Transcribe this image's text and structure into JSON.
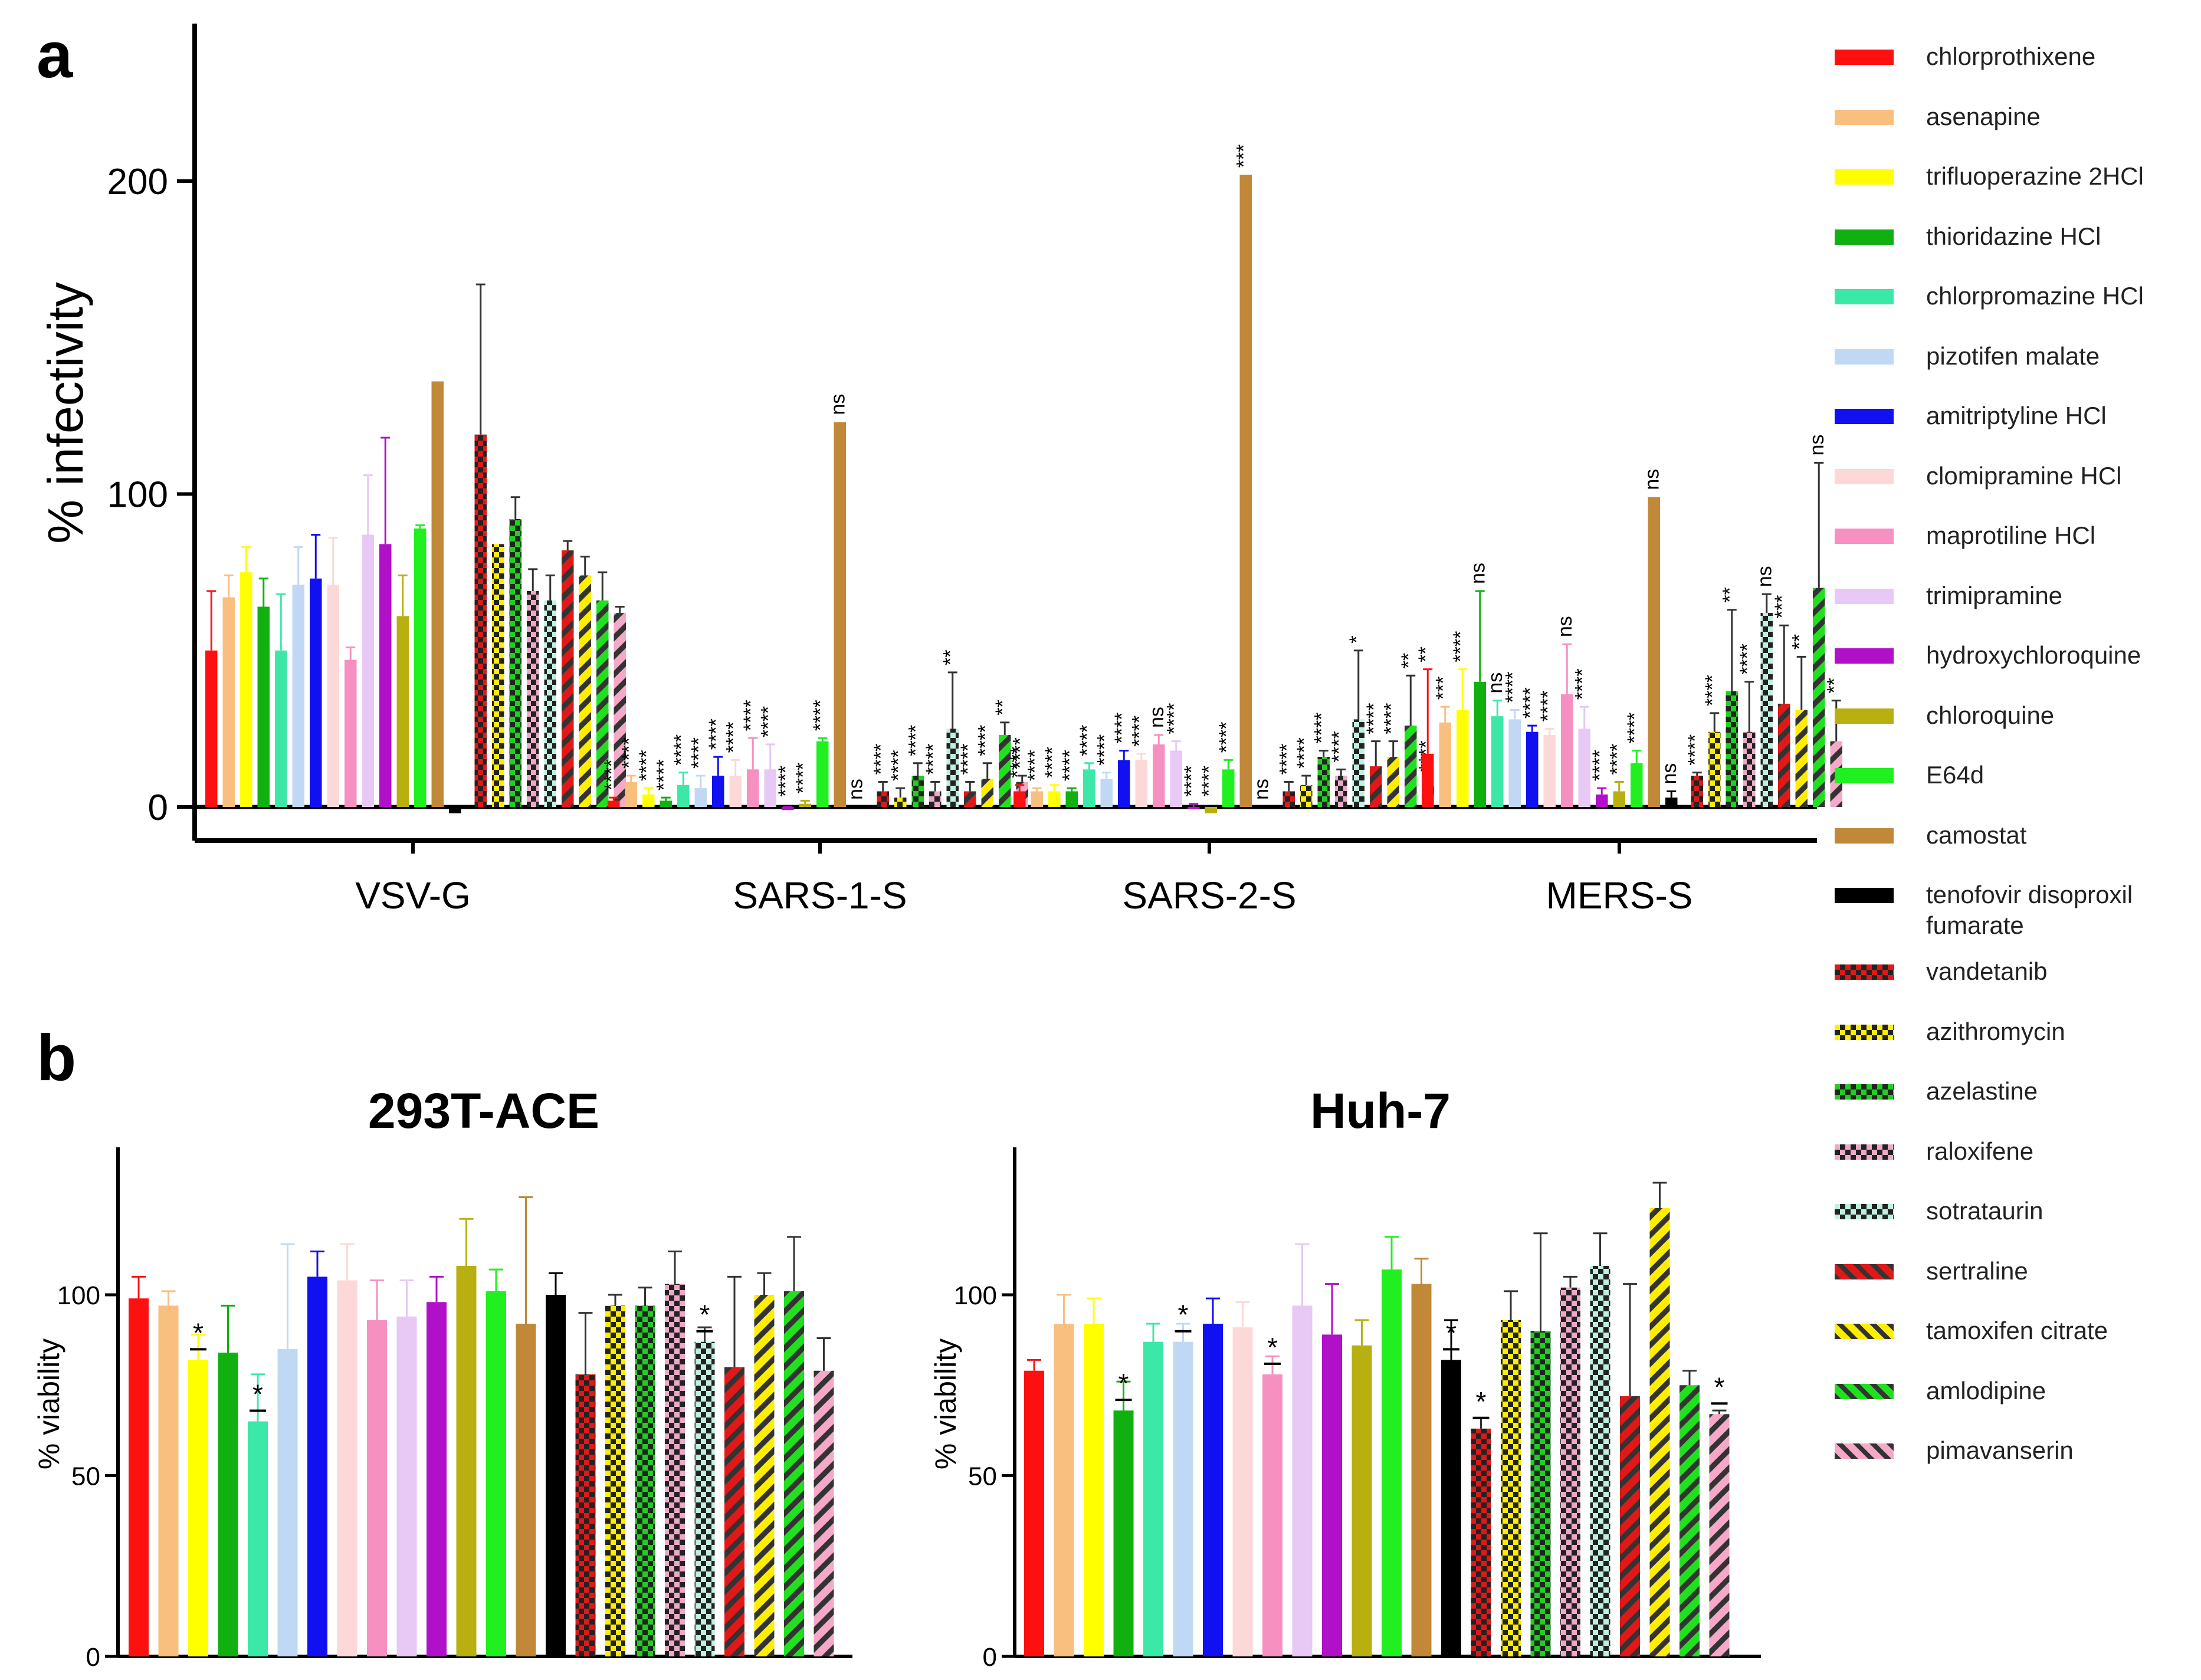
{
  "panel_labels": {
    "a": "a",
    "b": "b"
  },
  "legend": [
    {
      "label": "chlorprothixene",
      "color": "#ff1010",
      "pattern": "solid"
    },
    {
      "label": "asenapine",
      "color": "#f9bf7f",
      "pattern": "solid"
    },
    {
      "label": "trifluoperazine 2HCl",
      "color": "#ffff00",
      "pattern": "solid"
    },
    {
      "label": "thioridazine HCl",
      "color": "#10b010",
      "pattern": "solid"
    },
    {
      "label": "chlorpromazine HCl",
      "color": "#3ce8a8",
      "pattern": "solid"
    },
    {
      "label": "pizotifen malate",
      "color": "#c0d8f4",
      "pattern": "solid"
    },
    {
      "label": "amitriptyline HCl",
      "color": "#1010f0",
      "pattern": "solid"
    },
    {
      "label": "clomipramine HCl",
      "color": "#fcd8d8",
      "pattern": "solid"
    },
    {
      "label": "maprotiline HCl",
      "color": "#f590c0",
      "pattern": "solid"
    },
    {
      "label": "trimipramine",
      "color": "#e8c8f4",
      "pattern": "solid"
    },
    {
      "label": "hydroxychloroquine",
      "color": "#b010c8",
      "pattern": "solid"
    },
    {
      "label": "chloroquine",
      "color": "#b8b010",
      "pattern": "solid"
    },
    {
      "label": "E64d",
      "color": "#20f020",
      "pattern": "solid"
    },
    {
      "label": "camostat",
      "color": "#c08838",
      "pattern": "solid"
    },
    {
      "label": "tenofovir disoproxil fumarate",
      "color": "#000000",
      "pattern": "solid"
    },
    {
      "label": "vandetanib",
      "color": "#e01818",
      "pattern": "check"
    },
    {
      "label": "azithromycin",
      "color": "#ffee00",
      "pattern": "check"
    },
    {
      "label": "azelastine",
      "color": "#20d020",
      "pattern": "check"
    },
    {
      "label": "raloxifene",
      "color": "#f0a8c8",
      "pattern": "check"
    },
    {
      "label": "sotrataurin",
      "color": "#bff0e0",
      "pattern": "check"
    },
    {
      "label": "sertraline",
      "color": "#e01818",
      "pattern": "stripe"
    },
    {
      "label": "tamoxifen citrate",
      "color": "#ffee00",
      "pattern": "stripe"
    },
    {
      "label": "amlodipine",
      "color": "#20e020",
      "pattern": "stripe"
    },
    {
      "label": "pimavanserin",
      "color": "#f5a8c8",
      "pattern": "stripe"
    }
  ],
  "chart_data": [
    {
      "id": "a",
      "type": "bar",
      "title": "",
      "xlabel": "",
      "ylabel": "% infectivity",
      "ylim": [
        0,
        240
      ],
      "yticks": [
        0,
        100,
        200
      ],
      "categories": [
        "VSV-G",
        "SARS-1-S",
        "SARS-2-S",
        "MERS-S"
      ],
      "series_values": {
        "VSV-G": [
          50,
          67,
          75,
          64,
          50,
          71,
          73,
          71,
          47,
          87,
          84,
          61,
          89,
          136,
          -2,
          119,
          84,
          92,
          69,
          66,
          82,
          74,
          66,
          62
        ],
        "SARS-1-S": [
          2,
          8,
          4,
          2,
          7,
          6,
          10,
          10,
          12,
          12,
          -1,
          1,
          21,
          123,
          0,
          5,
          3,
          10,
          5,
          25,
          5,
          9,
          23,
          8
        ],
        "SARS-2-S": [
          5,
          5,
          5,
          5,
          12,
          9,
          15,
          15,
          20,
          18,
          0,
          -2,
          12,
          202,
          0,
          5,
          7,
          16,
          10,
          28,
          13,
          16,
          26,
          7
        ],
        "MERS-S": [
          17,
          27,
          31,
          40,
          29,
          28,
          24,
          23,
          36,
          25,
          4,
          5,
          14,
          99,
          3,
          10,
          24,
          37,
          24,
          62,
          33,
          31,
          70,
          21
        ]
      },
      "error_values": {
        "VSV-G": [
          19,
          7,
          8,
          9,
          18,
          12,
          14,
          15,
          4,
          19,
          34,
          13,
          1,
          0,
          0,
          48,
          0,
          7,
          7,
          8,
          3,
          6,
          9,
          2
        ],
        "SARS-1-S": [
          1,
          2,
          2,
          1,
          4,
          4,
          6,
          5,
          10,
          8,
          1,
          1,
          1,
          0,
          0,
          3,
          3,
          4,
          3,
          18,
          3,
          5,
          4,
          2
        ],
        "SARS-2-S": [
          2,
          1,
          2,
          1,
          2,
          2,
          3,
          2,
          3,
          3,
          1,
          1,
          3,
          0,
          0,
          3,
          3,
          2,
          2,
          22,
          8,
          5,
          16,
          2
        ],
        "MERS-S": [
          27,
          5,
          13,
          29,
          5,
          3,
          2,
          2,
          16,
          7,
          2,
          3,
          4,
          0,
          2,
          1,
          6,
          26,
          16,
          6,
          25,
          17,
          40,
          13
        ]
      },
      "significance": {
        "VSV-G": [
          "",
          "",
          "",
          "",
          "",
          "",
          "",
          "",
          "",
          "",
          "",
          "",
          "",
          "",
          "",
          "",
          "",
          "",
          "",
          "",
          "",
          "",
          "",
          ""
        ],
        "SARS-1-S": [
          "****",
          "****",
          "****",
          "****",
          "****",
          "****",
          "****",
          "****",
          "****",
          "****",
          "****",
          "****",
          "****",
          "ns",
          "ns",
          "****",
          "****",
          "****",
          "****",
          "**",
          "****",
          "****",
          "**",
          "****"
        ],
        "SARS-2-S": [
          "****",
          "****",
          "****",
          "****",
          "****",
          "****",
          "****",
          "****",
          "ns",
          "****",
          "****",
          "****",
          "****",
          "***",
          "ns",
          "****",
          "****",
          "****",
          "****",
          "*",
          "****",
          "****",
          "**",
          "****"
        ],
        "MERS-S": [
          "**",
          "***",
          "****",
          "ns",
          "ns",
          "****",
          "****",
          "****",
          "ns",
          "****",
          "****",
          "****",
          "****",
          "ns",
          "ns",
          "****",
          "****",
          "**",
          "****",
          "ns",
          "***",
          "**",
          "ns",
          "**"
        ]
      }
    },
    {
      "id": "b1",
      "type": "bar",
      "title": "293T-ACE",
      "xlabel": "",
      "ylabel": "% viability",
      "ylim": [
        0,
        140
      ],
      "yticks": [
        0,
        50,
        100
      ],
      "categories": [
        "chlorprothixene",
        "asenapine",
        "trifluoperazine 2HCl",
        "thioridazine HCl",
        "chlorpromazine HCl",
        "pizotifen malate",
        "amitriptyline HCl",
        "clomipramine HCl",
        "maprotiline HCl",
        "trimipramine",
        "hydroxychloroquine",
        "chloroquine",
        "E64d",
        "camostat",
        "tenofovir disoproxil fumarate",
        "vandetanib",
        "azithromycin",
        "azelastine",
        "raloxifene",
        "sotrataurin",
        "sertraline",
        "tamoxifen citrate",
        "amlodipine",
        "pimavanserin"
      ],
      "values": [
        99,
        97,
        82,
        84,
        65,
        85,
        105,
        104,
        93,
        94,
        98,
        108,
        101,
        92,
        100,
        78,
        97,
        97,
        103,
        87,
        80,
        100,
        101,
        79
      ],
      "errors": [
        6,
        4,
        7,
        13,
        13,
        29,
        7,
        10,
        11,
        10,
        7,
        13,
        6,
        35,
        6,
        17,
        3,
        5,
        9,
        4,
        25,
        6,
        15,
        9
      ],
      "significance": [
        "",
        "",
        "*",
        "",
        "*",
        "",
        "",
        "",
        "",
        "",
        "",
        "",
        "",
        "",
        "",
        "",
        "",
        "",
        "",
        "*",
        "",
        "",
        "",
        ""
      ]
    },
    {
      "id": "b2",
      "type": "bar",
      "title": "Huh-7",
      "xlabel": "",
      "ylabel": "% viability",
      "ylim": [
        0,
        140
      ],
      "yticks": [
        0,
        50,
        100
      ],
      "categories": [
        "chlorprothixene",
        "asenapine",
        "trifluoperazine 2HCl",
        "thioridazine HCl",
        "chlorpromazine HCl",
        "pizotifen malate",
        "amitriptyline HCl",
        "clomipramine HCl",
        "maprotiline HCl",
        "trimipramine",
        "hydroxychloroquine",
        "chloroquine",
        "E64d",
        "camostat",
        "tenofovir disoproxil fumarate",
        "vandetanib",
        "azithromycin",
        "azelastine",
        "raloxifene",
        "sotrataurin",
        "sertraline",
        "tamoxifen citrate",
        "amlodipine",
        "pimavanserin"
      ],
      "values": [
        79,
        92,
        92,
        68,
        87,
        87,
        92,
        91,
        78,
        97,
        89,
        86,
        107,
        103,
        82,
        63,
        93,
        90,
        102,
        108,
        72,
        124,
        75,
        67
      ],
      "errors": [
        3,
        8,
        7,
        8,
        5,
        5,
        7,
        7,
        5,
        17,
        14,
        7,
        9,
        7,
        11,
        3,
        8,
        27,
        3,
        9,
        31,
        7,
        4,
        1
      ],
      "significance": [
        "",
        "",
        "",
        "*",
        "",
        "*",
        "",
        "",
        "*",
        "",
        "",
        "",
        "",
        "",
        "*",
        "*",
        "",
        "",
        "",
        "",
        "",
        "",
        "",
        "*"
      ]
    }
  ]
}
